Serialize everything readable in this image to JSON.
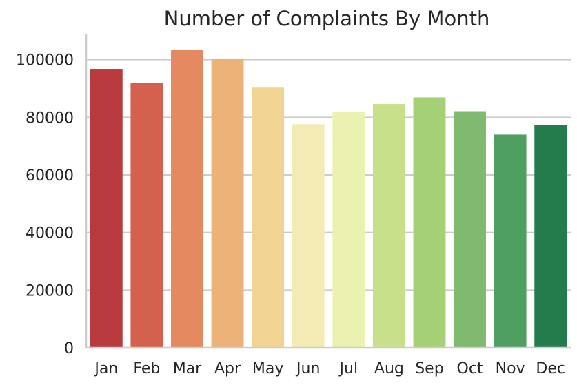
{
  "chart_data": {
    "type": "bar",
    "title": "Number of Complaints By Month",
    "xlabel": "",
    "ylabel": "",
    "categories": [
      "Jan",
      "Feb",
      "Mar",
      "Apr",
      "May",
      "Jun",
      "Jul",
      "Aug",
      "Sep",
      "Oct",
      "Nov",
      "Dec"
    ],
    "values": [
      96800,
      92000,
      103500,
      100200,
      90300,
      77600,
      81900,
      84600,
      86900,
      82100,
      74000,
      77400
    ],
    "ylim": [
      0,
      109000
    ],
    "yticks": [
      0,
      20000,
      40000,
      60000,
      80000,
      100000
    ],
    "ytick_labels": [
      "0",
      "20000",
      "40000",
      "60000",
      "80000",
      "100000"
    ],
    "grid": "horizontal",
    "colors": [
      "#b83a3f",
      "#d4614d",
      "#e58a60",
      "#ecb277",
      "#f1d491",
      "#f3ebb3",
      "#ebf1b1",
      "#c9e08b",
      "#a6d076",
      "#7fba6e",
      "#4e9f60",
      "#247c4c"
    ]
  }
}
